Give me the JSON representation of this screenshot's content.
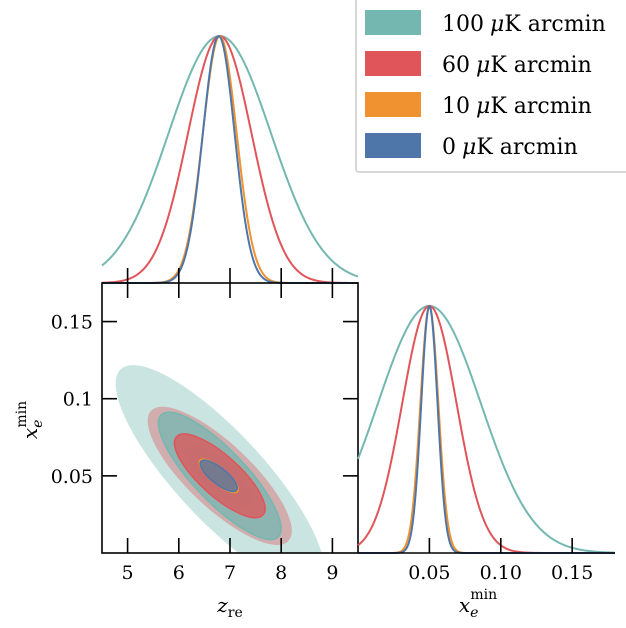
{
  "chart_data": [
    {
      "type": "line",
      "panel": "marginal z_re (top-left)",
      "xlim": [
        4.5,
        9.5
      ],
      "series": [
        {
          "name": "100 μK arcmin",
          "color": "#74b7b1",
          "mean": 6.8,
          "sigma": 1.0
        },
        {
          "name": "60 μK arcmin",
          "color": "#e05559",
          "mean": 6.8,
          "sigma": 0.62
        },
        {
          "name": "10 μK arcmin",
          "color": "#f0922f",
          "mean": 6.8,
          "sigma": 0.33
        },
        {
          "name": "0 μK arcmin",
          "color": "#4f76a9",
          "mean": 6.78,
          "sigma": 0.31
        }
      ]
    },
    {
      "type": "contour",
      "panel": "joint z_re vs x_e^min (bottom-left)",
      "xlabel": "z",
      "xlabel_sub": "re",
      "ylabel": "x",
      "ylabel_sub": "e",
      "ylabel_sup": "min",
      "xlim": [
        4.5,
        9.5
      ],
      "ylim": [
        0.0,
        0.175
      ],
      "xticks": [
        "5",
        "6",
        "7",
        "8",
        "9"
      ],
      "yticks": [
        "0.05",
        "0.1",
        "0.15"
      ],
      "contours": [
        {
          "name": "100 μK arcmin",
          "color": "#74b7b1",
          "center": [
            6.8,
            0.05
          ],
          "outer": [
            1.95,
            0.082
          ],
          "inner": [
            1.15,
            0.047
          ],
          "tilt": 0.21
        },
        {
          "name": "60 μK arcmin",
          "color": "#e05559",
          "center": [
            6.8,
            0.05
          ],
          "outer": [
            1.35,
            0.05
          ],
          "inner": [
            0.85,
            0.03
          ],
          "tilt": 0.22
        },
        {
          "name": "10 μK arcmin",
          "color": "#f0922f",
          "center": [
            6.78,
            0.05
          ],
          "outer": [
            0.67,
            0.024
          ],
          "inner": [
            0.37,
            0.012
          ],
          "tilt": 0.2
        },
        {
          "name": "0 μK arcmin",
          "color": "#4f76a9",
          "center": [
            6.78,
            0.05
          ],
          "outer": [
            0.64,
            0.022
          ],
          "inner": [
            0.35,
            0.011
          ],
          "tilt": 0.2
        }
      ]
    },
    {
      "type": "line",
      "panel": "marginal x_e^min (bottom-right)",
      "xlabel": "x",
      "xlabel_sub": "e",
      "xlabel_sup": "min",
      "xlim": [
        0.0,
        0.18
      ],
      "xticks": [
        "0.05",
        "0.10",
        "0.15"
      ],
      "series": [
        {
          "name": "100 μK arcmin",
          "color": "#74b7b1",
          "mean": 0.05,
          "sigma": 0.036
        },
        {
          "name": "60 μK arcmin",
          "color": "#e05559",
          "mean": 0.05,
          "sigma": 0.019
        },
        {
          "name": "10 μK arcmin",
          "color": "#f0922f",
          "mean": 0.05,
          "sigma": 0.0063
        },
        {
          "name": "0 μK arcmin",
          "color": "#4f76a9",
          "mean": 0.05,
          "sigma": 0.0057
        }
      ]
    }
  ],
  "legend": {
    "placement": "top-right",
    "entries": [
      {
        "value": "100",
        "unit_mu": "μ",
        "unit_rest": "K arcmin",
        "color": "#74b7b1"
      },
      {
        "value": "60",
        "unit_mu": "μ",
        "unit_rest": "K arcmin",
        "color": "#e05559"
      },
      {
        "value": "10",
        "unit_mu": "μ",
        "unit_rest": "K arcmin",
        "color": "#f0922f"
      },
      {
        "value": "0",
        "unit_mu": "μ",
        "unit_rest": "K arcmin",
        "color": "#4f76a9"
      }
    ]
  }
}
